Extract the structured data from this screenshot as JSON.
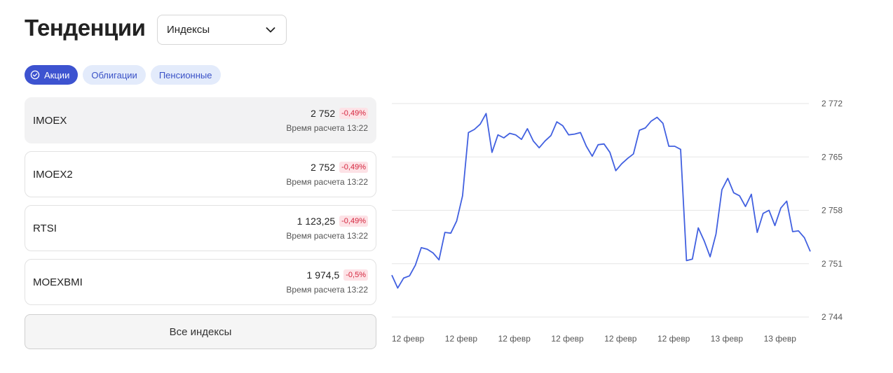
{
  "header": {
    "title": "Тенденции",
    "dropdown_value": "Индексы"
  },
  "tabs": [
    {
      "label": "Акции",
      "active": true
    },
    {
      "label": "Облигации",
      "active": false
    },
    {
      "label": "Пенсионные",
      "active": false
    }
  ],
  "indices": [
    {
      "name": "IMOEX",
      "value": "2 752",
      "change": "-0,49%",
      "time": "Время расчета 13:22",
      "selected": true
    },
    {
      "name": "IMOEX2",
      "value": "2 752",
      "change": "-0,49%",
      "time": "Время расчета 13:22",
      "selected": false
    },
    {
      "name": "RTSI",
      "value": "1 123,25",
      "change": "-0,49%",
      "time": "Время расчета 13:22",
      "selected": false
    },
    {
      "name": "MOEXBMI",
      "value": "1 974,5",
      "change": "-0,5%",
      "time": "Время расчета 13:22",
      "selected": false
    }
  ],
  "all_button_label": "Все индексы",
  "colors": {
    "accent": "#3d53d0",
    "line": "#4160e0",
    "negative": "#d4263e"
  },
  "chart_data": {
    "type": "line",
    "y_ticks": [
      "2 772",
      "2 765",
      "2 758",
      "2 751",
      "2 744"
    ],
    "y_tick_values": [
      2772,
      2765,
      2758,
      2751,
      2744
    ],
    "ylim": [
      2744,
      2772
    ],
    "x_tick_labels": [
      "12 февр",
      "12 февр",
      "12 февр",
      "12 февр",
      "12 февр",
      "12 февр",
      "13 февр",
      "13 февр"
    ],
    "grid": true,
    "series": [
      {
        "values": [
          2749.5,
          2747.8,
          2749.1,
          2749.4,
          2750.8,
          2753.1,
          2752.9,
          2752.4,
          2751.5,
          2755.1,
          2755.0,
          2756.6,
          2759.9,
          2768.2,
          2768.6,
          2769.3,
          2770.7,
          2765.6,
          2767.9,
          2767.5,
          2768.1,
          2767.9,
          2767.3,
          2768.7,
          2767.1,
          2766.2,
          2767.1,
          2767.8,
          2769.6,
          2769.1,
          2767.9,
          2768.0,
          2768.2,
          2766.4,
          2765.1,
          2766.6,
          2766.7,
          2765.6,
          2763.2,
          2764.1,
          2764.8,
          2765.4,
          2768.5,
          2768.8,
          2769.7,
          2770.2,
          2769.4,
          2766.4,
          2766.4,
          2766.0,
          2751.4,
          2751.6,
          2755.7,
          2754.0,
          2751.9,
          2754.9,
          2760.7,
          2762.2,
          2760.3,
          2759.9,
          2758.5,
          2760.1,
          2755.1,
          2757.6,
          2758.0,
          2756.0,
          2758.3,
          2759.2,
          2755.2,
          2755.3,
          2754.4,
          2752.6
        ]
      }
    ]
  }
}
